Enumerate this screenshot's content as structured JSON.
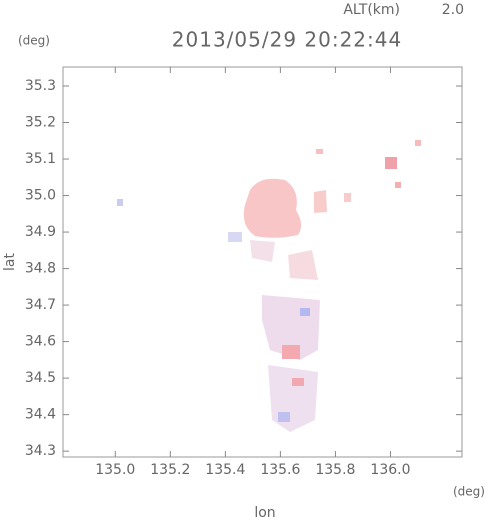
{
  "chart_data": {
    "type": "map",
    "title": "2013/05/29 20:22:44",
    "subtitle_label": "ALT(km)",
    "subtitle_value": "2.0",
    "y_unit": "(deg)",
    "x_unit": "(deg)",
    "xlabel": "lon",
    "ylabel": "lat",
    "xlim": [
      134.81,
      136.26
    ],
    "ylim": [
      34.284,
      35.352
    ],
    "xticks": [
      {
        "value": 135,
        "label": "135.0"
      },
      135.2,
      135.4,
      135.6,
      135.8,
      {
        "value": 136,
        "label": "136.0"
      }
    ],
    "yticks": [
      34.3,
      34.4,
      34.5,
      34.6,
      34.7,
      34.8,
      34.9,
      {
        "value": 35,
        "label": "35.0"
      },
      35.1,
      35.2,
      35.3
    ]
  }
}
